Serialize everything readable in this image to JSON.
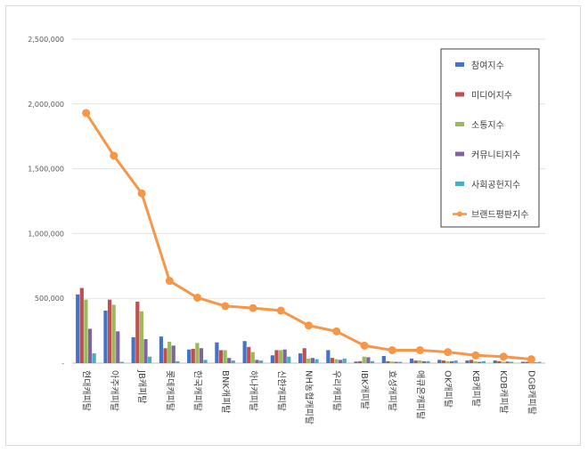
{
  "chart_data": {
    "type": "bar",
    "categories": [
      "현대캐피탈",
      "아주캐피탈",
      "JB캐피탈",
      "롯데캐피탈",
      "한국캐피탈",
      "BNK캐피탈",
      "하나캐피탈",
      "신한캐피탈",
      "NH농협캐피탈",
      "우리캐피탈",
      "IBK캐피탈",
      "효성캐피탈",
      "애큐온캐피탈",
      "OK캐피탈",
      "KB캐피탈",
      "KDB캐피탈",
      "DGB캐피탈"
    ],
    "series": [
      {
        "name": "참여지수",
        "kind": "bar",
        "color": "#4472c4",
        "values": [
          530000,
          405000,
          200000,
          205000,
          105000,
          160000,
          170000,
          60000,
          75000,
          100000,
          12000,
          55000,
          35000,
          25000,
          20000,
          20000,
          10000
        ]
      },
      {
        "name": "미디어지수",
        "kind": "bar",
        "color": "#c0504d",
        "values": [
          580000,
          490000,
          475000,
          115000,
          110000,
          100000,
          125000,
          100000,
          115000,
          40000,
          15000,
          15000,
          20000,
          20000,
          25000,
          15000,
          10000
        ]
      },
      {
        "name": "소통지수",
        "kind": "bar",
        "color": "#9bbb59",
        "values": [
          490000,
          450000,
          400000,
          165000,
          155000,
          100000,
          85000,
          100000,
          35000,
          30000,
          50000,
          12000,
          20000,
          15000,
          15000,
          10000,
          10000
        ]
      },
      {
        "name": "커뮤니티지수",
        "kind": "bar",
        "color": "#8064a2",
        "values": [
          265000,
          245000,
          185000,
          135000,
          115000,
          40000,
          25000,
          105000,
          40000,
          25000,
          45000,
          10000,
          15000,
          15000,
          10000,
          12000,
          5000
        ]
      },
      {
        "name": "사회공헌지수",
        "kind": "bar",
        "color": "#4bacc6",
        "values": [
          75000,
          10000,
          50000,
          15000,
          25000,
          20000,
          20000,
          50000,
          30000,
          35000,
          15000,
          10000,
          15000,
          20000,
          15000,
          10000,
          10000
        ]
      },
      {
        "name": "브랜드평판지수",
        "kind": "line",
        "color": "#f79646",
        "values": [
          1930000,
          1600000,
          1310000,
          635000,
          505000,
          440000,
          425000,
          405000,
          290000,
          245000,
          135000,
          100000,
          100000,
          85000,
          60000,
          50000,
          30000
        ]
      }
    ],
    "yticks": [
      "-",
      "500,000",
      "1,000,000",
      "1,500,000",
      "2,000,000",
      "2,500,000"
    ],
    "ylim": [
      0,
      2500000
    ],
    "grid": true,
    "legend": "top-right"
  }
}
